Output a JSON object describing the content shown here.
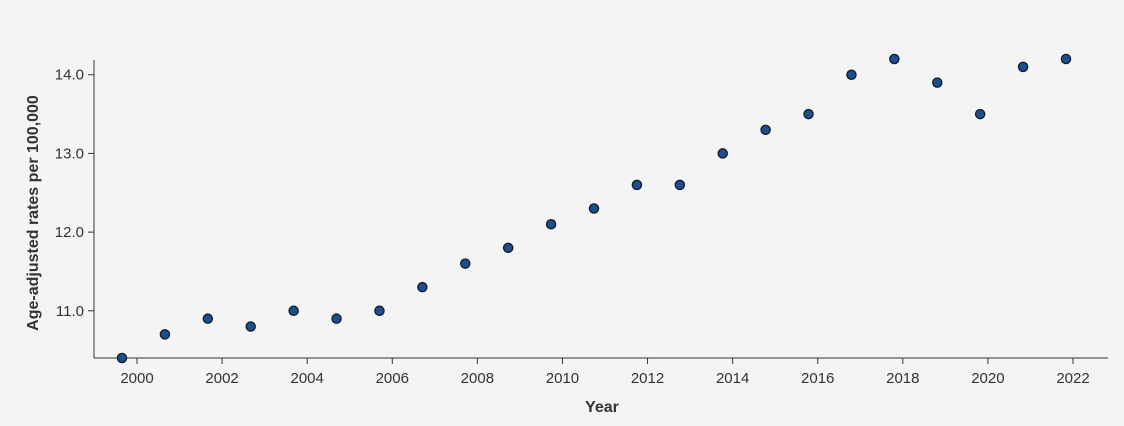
{
  "chart_data": {
    "type": "scatter",
    "xlabel": "Year",
    "ylabel": "Age-adjusted rates per 100,000",
    "x": [
      1999,
      2000,
      2001,
      2002,
      2003,
      2004,
      2005,
      2006,
      2007,
      2008,
      2009,
      2010,
      2011,
      2012,
      2013,
      2014,
      2015,
      2016,
      2017,
      2018,
      2019,
      2020,
      2021
    ],
    "y": [
      10.4,
      10.7,
      10.9,
      10.8,
      11.0,
      10.9,
      11.0,
      11.3,
      11.6,
      11.8,
      12.1,
      12.3,
      12.6,
      12.6,
      13.0,
      13.3,
      13.5,
      14.0,
      14.2,
      13.9,
      13.5,
      14.1,
      14.2
    ],
    "xlim": [
      1999,
      2022.5
    ],
    "ylim": [
      10.4,
      14.2
    ],
    "xticks": [
      2000,
      2002,
      2004,
      2006,
      2008,
      2010,
      2012,
      2014,
      2016,
      2018,
      2020,
      2022
    ],
    "xtick_labels": [
      "2000",
      "2002",
      "2004",
      "2006",
      "2008",
      "2010",
      "2012",
      "2014",
      "2016",
      "2018",
      "2020",
      "2022"
    ],
    "yticks": [
      11.0,
      12.0,
      13.0,
      14.0
    ],
    "ytick_labels": [
      "11.0",
      "12.0",
      "13.0",
      "14.0"
    ],
    "grid": false,
    "colors": {
      "marker_fill": "#1f4e8c",
      "marker_edge": "#0d1b2a",
      "background": "#f4f4f4"
    }
  }
}
